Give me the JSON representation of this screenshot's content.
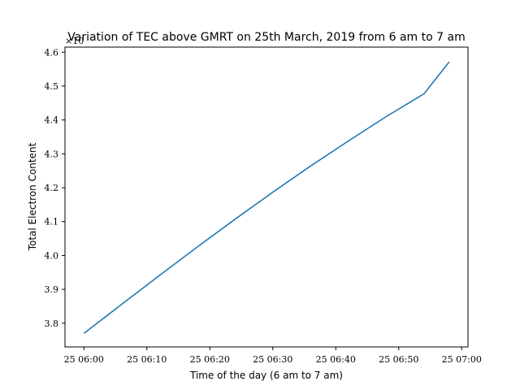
{
  "chart_data": {
    "type": "line",
    "title": "Variation of TEC above GMRT on 25th March, 2019 from 6 am to 7 am",
    "xlabel": "Time of the day (6 am to 7 am)",
    "ylabel": "Total Electron Content",
    "y_offset_label": "×10",
    "x_ticks": [
      "25 06:00",
      "25 06:10",
      "25 06:20",
      "25 06:30",
      "25 06:40",
      "25 06:50",
      "25 07:00"
    ],
    "y_ticks": [
      "3.8",
      "3.9",
      "4.0",
      "4.1",
      "4.2",
      "4.3",
      "4.4",
      "4.5",
      "4.6"
    ],
    "xlim": [
      "25 05:57",
      "25 07:01"
    ],
    "ylim": [
      3.73,
      4.615
    ],
    "grid": false,
    "series": [
      {
        "color": "#1f77b4",
        "x": [
          "25 06:00",
          "25 06:06",
          "25 06:12",
          "25 06:18",
          "25 06:24",
          "25 06:30",
          "25 06:36",
          "25 06:42",
          "25 06:48",
          "25 06:54",
          "25 06:58"
        ],
        "y": [
          3.77,
          3.856,
          3.941,
          4.025,
          4.107,
          4.187,
          4.264,
          4.338,
          4.41,
          4.477,
          4.571
        ]
      }
    ]
  }
}
